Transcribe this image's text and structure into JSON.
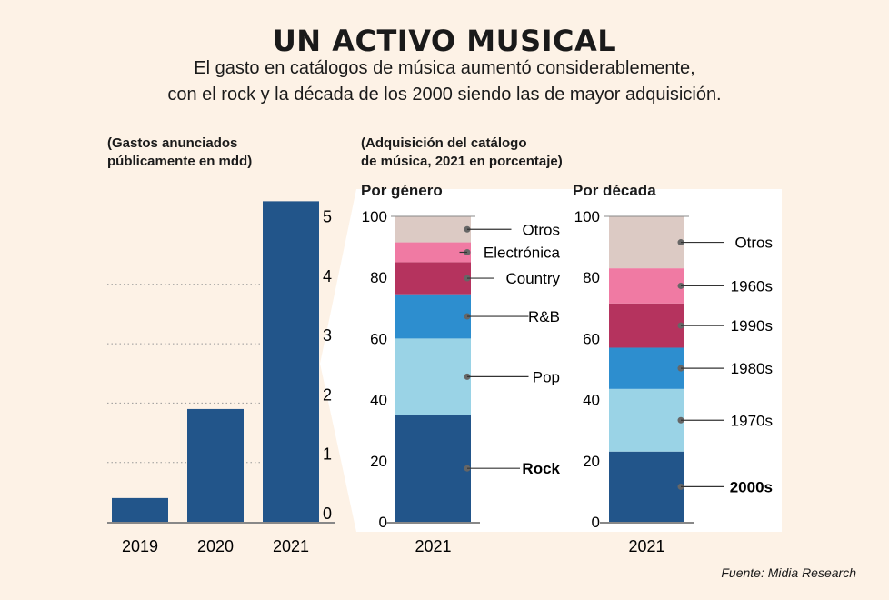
{
  "header": {
    "title": "UN ACTIVO MUSICAL",
    "subtitle_1": "El gasto en catálogos de música aumentó considerablemente,",
    "subtitle_2": "con el rock y la década de los 2000 siendo las de mayor adquisición."
  },
  "notes": {
    "left": [
      "(Gastos anunciados",
      "públicamente en mdd)"
    ],
    "right": [
      "(Adquisición del catálogo",
      "de música, 2021 en porcentaje)"
    ]
  },
  "source": "Fuente: Midia Research",
  "colors": {
    "background": "#fdf2e6",
    "bar": "#22558a",
    "panel": "#ffffff"
  },
  "chart_data": [
    {
      "type": "bar",
      "ylabel": "(Gastos anunciados públicamente en mdd)",
      "categories": [
        "2019",
        "2020",
        "2021"
      ],
      "values": [
        0.4,
        1.9,
        5.4
      ],
      "ylim": [
        0,
        5.5
      ],
      "yticks": [
        0,
        1,
        2,
        3,
        4,
        5
      ],
      "grid": true,
      "color": "#22558a"
    },
    {
      "type": "bar",
      "stacked": true,
      "title": "Por género",
      "categories": [
        "2021"
      ],
      "ylim": [
        0,
        100
      ],
      "yticks": [
        0,
        20,
        40,
        60,
        80,
        100
      ],
      "series": [
        {
          "name": "Rock",
          "value": 35,
          "color": "#22558a",
          "bold": true
        },
        {
          "name": "Pop",
          "value": 25,
          "color": "#9ad3e6"
        },
        {
          "name": "R&B",
          "value": 14.5,
          "color": "#2d8ecf"
        },
        {
          "name": "Country",
          "value": 10.5,
          "color": "#b5335e"
        },
        {
          "name": "Electrónica",
          "value": 6.5,
          "color": "#f07aa3"
        },
        {
          "name": "Otros",
          "value": 8.5,
          "color": "#dccac4"
        }
      ]
    },
    {
      "type": "bar",
      "stacked": true,
      "title": "Por década",
      "categories": [
        "2021"
      ],
      "ylim": [
        0,
        100
      ],
      "yticks": [
        0,
        20,
        40,
        60,
        80,
        100
      ],
      "series": [
        {
          "name": "2000s",
          "value": 23,
          "color": "#22558a",
          "bold": true
        },
        {
          "name": "1970s",
          "value": 20.5,
          "color": "#9ad3e6"
        },
        {
          "name": "1980s",
          "value": 13.5,
          "color": "#2d8ecf"
        },
        {
          "name": "1990s",
          "value": 14.5,
          "color": "#b5335e"
        },
        {
          "name": "1960s",
          "value": 11.5,
          "color": "#f07aa3"
        },
        {
          "name": "Otros",
          "value": 17,
          "color": "#dccac4"
        }
      ]
    }
  ]
}
